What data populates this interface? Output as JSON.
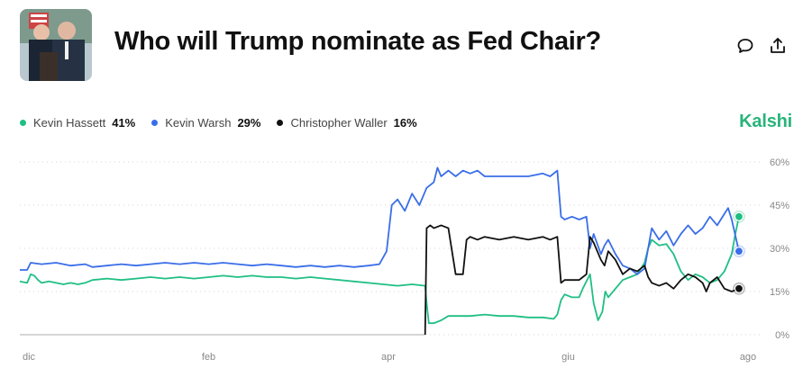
{
  "header": {
    "title": "Who will Trump nominate as Fed Chair?",
    "thumbnail_alt": "Market thumbnail photo",
    "icons": {
      "comment": "comment-icon",
      "share": "share-icon"
    }
  },
  "brand": "Kalshi",
  "legend": [
    {
      "name": "Kevin Hassett",
      "value": "41%",
      "color": "#1fbf84"
    },
    {
      "name": "Kevin Warsh",
      "value": "29%",
      "color": "#3a6ee8"
    },
    {
      "name": "Christopher Waller",
      "value": "16%",
      "color": "#111111"
    }
  ],
  "chart_data": {
    "type": "line",
    "x_axis": {
      "ticks": [
        "dic",
        "feb",
        "apr",
        "giu",
        "ago"
      ]
    },
    "y_axis": {
      "ticks": [
        "60%",
        "45%",
        "30%",
        "15%",
        "0%"
      ],
      "ylim": [
        0,
        60
      ],
      "position": "right"
    },
    "grid": true,
    "x_domain": [
      0,
      100
    ],
    "series": [
      {
        "name": "Kevin Hassett",
        "color": "#1fbf84",
        "points": [
          [
            0,
            18.5
          ],
          [
            1,
            18
          ],
          [
            1.5,
            21
          ],
          [
            2,
            20.5
          ],
          [
            2.5,
            19
          ],
          [
            3,
            18
          ],
          [
            4,
            18.5
          ],
          [
            5,
            18
          ],
          [
            6,
            17.5
          ],
          [
            7,
            18
          ],
          [
            8,
            17.5
          ],
          [
            9,
            18
          ],
          [
            10,
            19
          ],
          [
            12,
            19.5
          ],
          [
            14,
            19
          ],
          [
            16,
            19.5
          ],
          [
            18,
            20
          ],
          [
            20,
            19.5
          ],
          [
            22,
            20
          ],
          [
            24,
            19.5
          ],
          [
            26,
            20
          ],
          [
            28,
            20.5
          ],
          [
            30,
            20
          ],
          [
            32,
            20.5
          ],
          [
            34,
            20
          ],
          [
            36,
            20
          ],
          [
            38,
            19.5
          ],
          [
            40,
            20
          ],
          [
            42,
            19.5
          ],
          [
            44,
            19
          ],
          [
            46,
            18.5
          ],
          [
            48,
            18
          ],
          [
            50,
            17.5
          ],
          [
            52,
            17
          ],
          [
            54,
            17.5
          ],
          [
            55.8,
            17
          ],
          [
            56,
            11
          ],
          [
            56.3,
            4
          ],
          [
            57,
            4
          ],
          [
            58,
            5
          ],
          [
            59,
            6.5
          ],
          [
            60,
            6.5
          ],
          [
            62,
            6.5
          ],
          [
            64,
            7
          ],
          [
            66,
            6.5
          ],
          [
            68,
            6.5
          ],
          [
            70,
            6
          ],
          [
            72,
            6
          ],
          [
            73.5,
            5.5
          ],
          [
            74,
            7
          ],
          [
            74.5,
            12
          ],
          [
            75,
            14
          ],
          [
            76,
            13
          ],
          [
            77,
            13
          ],
          [
            77.5,
            16
          ],
          [
            78.5,
            21
          ],
          [
            79,
            11
          ],
          [
            79.6,
            5
          ],
          [
            80.2,
            8
          ],
          [
            80.6,
            15
          ],
          [
            81,
            13
          ],
          [
            82,
            16
          ],
          [
            83,
            19
          ],
          [
            84,
            20
          ],
          [
            85,
            21
          ],
          [
            86,
            25
          ],
          [
            86.5,
            30
          ],
          [
            87,
            33
          ],
          [
            88,
            31
          ],
          [
            89,
            31.5
          ],
          [
            90,
            28
          ],
          [
            90.5,
            25
          ],
          [
            91,
            22
          ],
          [
            92,
            19
          ],
          [
            93,
            21
          ],
          [
            94,
            20
          ],
          [
            94.5,
            19
          ],
          [
            95,
            18
          ],
          [
            96,
            19
          ],
          [
            97,
            22
          ],
          [
            98,
            28
          ],
          [
            98.5,
            35
          ],
          [
            99,
            41
          ]
        ]
      },
      {
        "name": "Kevin Warsh",
        "color": "#3a6ee8",
        "points": [
          [
            0,
            22.5
          ],
          [
            1,
            22.5
          ],
          [
            1.5,
            25
          ],
          [
            3,
            24.5
          ],
          [
            5,
            25
          ],
          [
            7,
            24
          ],
          [
            9,
            24.5
          ],
          [
            10,
            23.5
          ],
          [
            12,
            24
          ],
          [
            14,
            24.5
          ],
          [
            16,
            24
          ],
          [
            18,
            24.5
          ],
          [
            20,
            25
          ],
          [
            22,
            24.5
          ],
          [
            24,
            25
          ],
          [
            26,
            24.5
          ],
          [
            28,
            25
          ],
          [
            30,
            24.5
          ],
          [
            32,
            24
          ],
          [
            34,
            24.5
          ],
          [
            36,
            24
          ],
          [
            38,
            23.5
          ],
          [
            40,
            24
          ],
          [
            42,
            23.5
          ],
          [
            44,
            24
          ],
          [
            46,
            23.5
          ],
          [
            48,
            24
          ],
          [
            49.5,
            24.5
          ],
          [
            50.5,
            29
          ],
          [
            51.2,
            45
          ],
          [
            52,
            47
          ],
          [
            53,
            43
          ],
          [
            54,
            49
          ],
          [
            55,
            45
          ],
          [
            56,
            51
          ],
          [
            57,
            53
          ],
          [
            57.5,
            58
          ],
          [
            58,
            55
          ],
          [
            59,
            57
          ],
          [
            60,
            55
          ],
          [
            61,
            57
          ],
          [
            62,
            56
          ],
          [
            63,
            57
          ],
          [
            64,
            55
          ],
          [
            66,
            55
          ],
          [
            68,
            55
          ],
          [
            70,
            55
          ],
          [
            72,
            56
          ],
          [
            73,
            55
          ],
          [
            74,
            57
          ],
          [
            74.5,
            41
          ],
          [
            75,
            40
          ],
          [
            76,
            41
          ],
          [
            77,
            40
          ],
          [
            78,
            41
          ],
          [
            78.5,
            30
          ],
          [
            79,
            35
          ],
          [
            80,
            28
          ],
          [
            80.5,
            31
          ],
          [
            81,
            33
          ],
          [
            82,
            28
          ],
          [
            83,
            24
          ],
          [
            84,
            23
          ],
          [
            85,
            21
          ],
          [
            86,
            23
          ],
          [
            86.5,
            30
          ],
          [
            87,
            37
          ],
          [
            88,
            33
          ],
          [
            89,
            36
          ],
          [
            90,
            31
          ],
          [
            91,
            35
          ],
          [
            92,
            38
          ],
          [
            93,
            35
          ],
          [
            94,
            37
          ],
          [
            95,
            41
          ],
          [
            96,
            38
          ],
          [
            97,
            42
          ],
          [
            97.5,
            44
          ],
          [
            98,
            40
          ],
          [
            99,
            29
          ]
        ]
      },
      {
        "name": "Christopher Waller",
        "color": "#111111",
        "points": [
          [
            55.8,
            0
          ],
          [
            56,
            37
          ],
          [
            56.5,
            38
          ],
          [
            57,
            37
          ],
          [
            58,
            38
          ],
          [
            59,
            37
          ],
          [
            60,
            21
          ],
          [
            61,
            21
          ],
          [
            61.5,
            33
          ],
          [
            62,
            34
          ],
          [
            63,
            33
          ],
          [
            64,
            34
          ],
          [
            66,
            33
          ],
          [
            68,
            34
          ],
          [
            70,
            33
          ],
          [
            72,
            34
          ],
          [
            73,
            33
          ],
          [
            74,
            34
          ],
          [
            74.5,
            18
          ],
          [
            75,
            19
          ],
          [
            77,
            19
          ],
          [
            77.5,
            20
          ],
          [
            78,
            21
          ],
          [
            78.5,
            34
          ],
          [
            79,
            32
          ],
          [
            80,
            26
          ],
          [
            80.5,
            24
          ],
          [
            81,
            29
          ],
          [
            82,
            26
          ],
          [
            83,
            21
          ],
          [
            84,
            23
          ],
          [
            85,
            22
          ],
          [
            86,
            24
          ],
          [
            86.5,
            20
          ],
          [
            87,
            18
          ],
          [
            88,
            17
          ],
          [
            89,
            18
          ],
          [
            90,
            16
          ],
          [
            91,
            19
          ],
          [
            92,
            21
          ],
          [
            93,
            20
          ],
          [
            94,
            18
          ],
          [
            94.5,
            15
          ],
          [
            95,
            18
          ],
          [
            96,
            20
          ],
          [
            97,
            16
          ],
          [
            98,
            15
          ],
          [
            99,
            16
          ]
        ],
        "pre_series_color": "#c9c9c9",
        "pre_series_value": 0
      }
    ]
  }
}
